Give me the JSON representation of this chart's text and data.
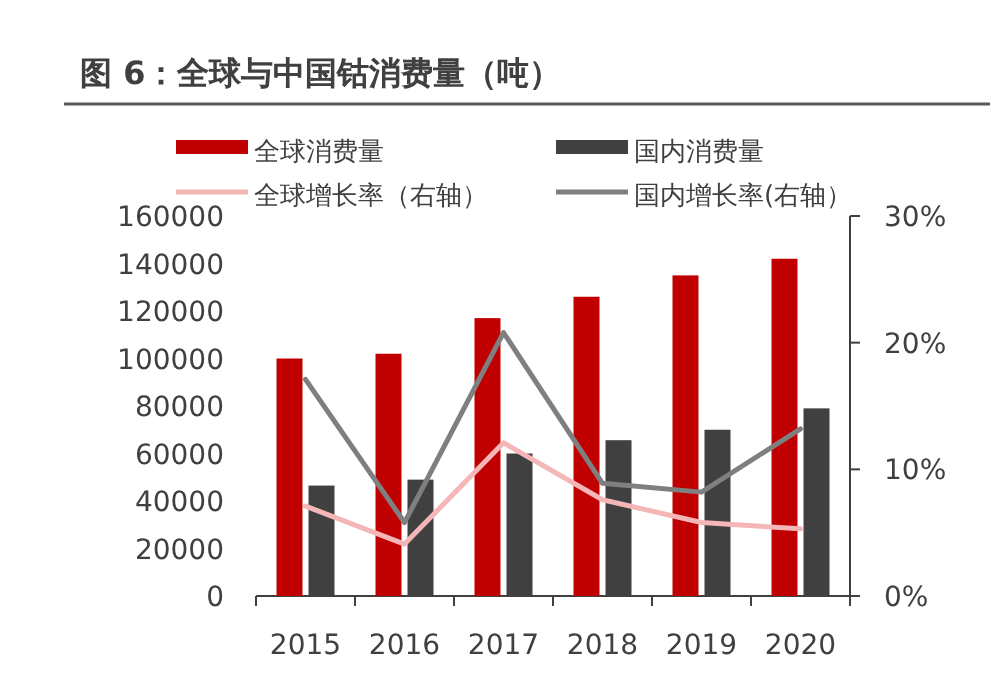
{
  "chart_data": {
    "type": "bar",
    "title": "图 6：全球与中国钴消费量（吨）",
    "categories": [
      "2015",
      "2016",
      "2017",
      "2018",
      "2019",
      "2020"
    ],
    "series": [
      {
        "name": "全球消费量",
        "color": "#c00000",
        "values": [
          100000,
          102000,
          117000,
          126000,
          135000,
          142000
        ]
      },
      {
        "name": "国内消费量",
        "color": "#404040",
        "values": [
          46500,
          49000,
          60000,
          65600,
          70000,
          79000
        ]
      },
      {
        "name": "全球增长率（右轴）",
        "type": "line",
        "axis": "y2",
        "color": "#f4b6b6",
        "values": [
          7.1,
          4.1,
          12.1,
          7.6,
          5.8,
          5.3
        ]
      },
      {
        "name": "国内增长率(右轴）",
        "type": "line",
        "axis": "y2",
        "color": "#7f7f7f",
        "values": [
          17.1,
          5.8,
          20.8,
          8.9,
          8.2,
          13.2
        ]
      }
    ],
    "ylim": [
      0,
      160000
    ],
    "yticks": [
      0,
      20000,
      40000,
      60000,
      80000,
      100000,
      120000,
      140000,
      160000
    ],
    "y2lim": [
      0,
      30
    ],
    "y2ticks": [
      {
        "value": 0,
        "label": "0%"
      },
      {
        "value": 10,
        "label": "10%"
      },
      {
        "value": 20,
        "label": "20%"
      },
      {
        "value": 30,
        "label": "30%"
      }
    ],
    "legend": "top",
    "grid": false
  }
}
